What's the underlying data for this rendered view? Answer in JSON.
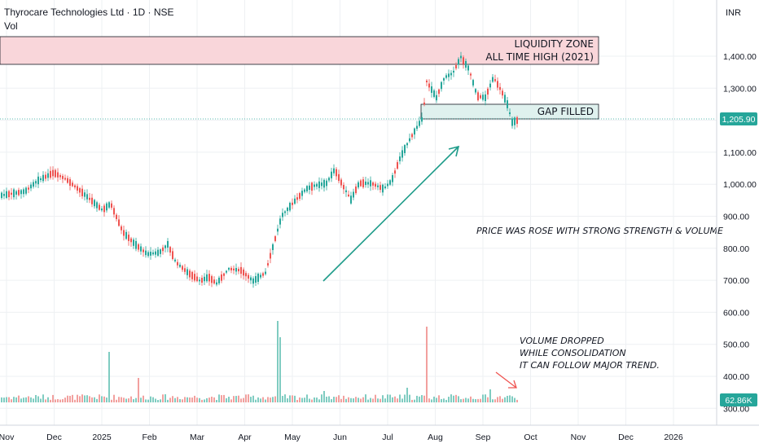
{
  "header": {
    "title": "Thyrocare Technologies Ltd · 1D · NSE",
    "volume_label": "Vol",
    "currency": "INR"
  },
  "price_axis": {
    "ticks": [
      "1,400.00",
      "1,300.00",
      "1,200.00",
      "1,100.00",
      "1,000.00",
      "900.00",
      "800.00",
      "700.00",
      "600.00",
      "500.00",
      "400.00",
      "300.00"
    ],
    "last_price": "1,205.90",
    "last_volume": "62.86K"
  },
  "time_axis": {
    "ticks": [
      "Nov",
      "Dec",
      "2025",
      "Feb",
      "Mar",
      "Apr",
      "May",
      "Jun",
      "Jul",
      "Aug",
      "Sep",
      "Oct",
      "Nov",
      "Dec",
      "2026"
    ]
  },
  "annotations": {
    "liquidity_zone_line1": "LIQUIDITY ZONE",
    "liquidity_zone_line2": "ALL TIME HIGH (2021)",
    "gap_filled": "GAP FILLED",
    "price_note": "PRICE WAS ROSE WITH STRONG STRENGTH & VOLUME",
    "volume_note_line1": "VOLUME DROPPED",
    "volume_note_line2": "WHILE CONSOLIDATION",
    "volume_note_line3": "IT CAN FOLLOW MAJOR TREND."
  },
  "colors": {
    "up": "#26a69a",
    "down": "#ef5350",
    "zone_fill": "#f9d6da",
    "gap_fill": "#dff1ee",
    "arrow": "#1f9c8a",
    "red_arrow": "#ef5350",
    "last_price_badge": "#26a69a",
    "grid": "#eef0f3"
  },
  "chart_data": {
    "type": "candlestick",
    "price_range": [
      300,
      1440
    ],
    "zones": [
      {
        "name": "LIQUIDITY ZONE / ALL TIME HIGH (2021)",
        "low": 1370,
        "high": 1410
      },
      {
        "name": "GAP FILLED",
        "low": 1200,
        "high": 1245
      }
    ],
    "last_price": 1205.9,
    "trend_points": [
      {
        "date": "2025-03",
        "close": 700
      },
      {
        "date": "2025-04",
        "close": 720
      },
      {
        "date": "2025-05",
        "close": 870
      },
      {
        "date": "2025-06",
        "close": 1000
      },
      {
        "date": "2025-07",
        "close": 1170
      },
      {
        "date": "2025-08",
        "close": 1380
      },
      {
        "date": "2025-09",
        "close": 1206
      }
    ]
  }
}
